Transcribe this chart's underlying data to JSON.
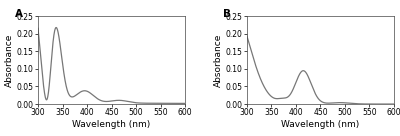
{
  "panel_A": {
    "label": "A",
    "xlabel": "Wavelength (nm)",
    "ylabel": "Absorbance",
    "xlim": [
      300,
      600
    ],
    "ylim": [
      0.0,
      0.25
    ],
    "yticks": [
      0.0,
      0.05,
      0.1,
      0.15,
      0.2,
      0.25
    ],
    "xticks": [
      300,
      350,
      400,
      450,
      500,
      550,
      600
    ],
    "line_color": "#777777"
  },
  "panel_B": {
    "label": "B",
    "xlabel": "Wavelength (nm)",
    "ylabel": "Absorbance",
    "xlim": [
      300,
      600
    ],
    "ylim": [
      0.0,
      0.25
    ],
    "yticks": [
      0.0,
      0.05,
      0.1,
      0.15,
      0.2,
      0.25
    ],
    "xticks": [
      300,
      350,
      400,
      450,
      500,
      550,
      600
    ],
    "line_color": "#777777"
  },
  "background_color": "#ffffff",
  "line_width": 0.9,
  "font_size": 6.5
}
